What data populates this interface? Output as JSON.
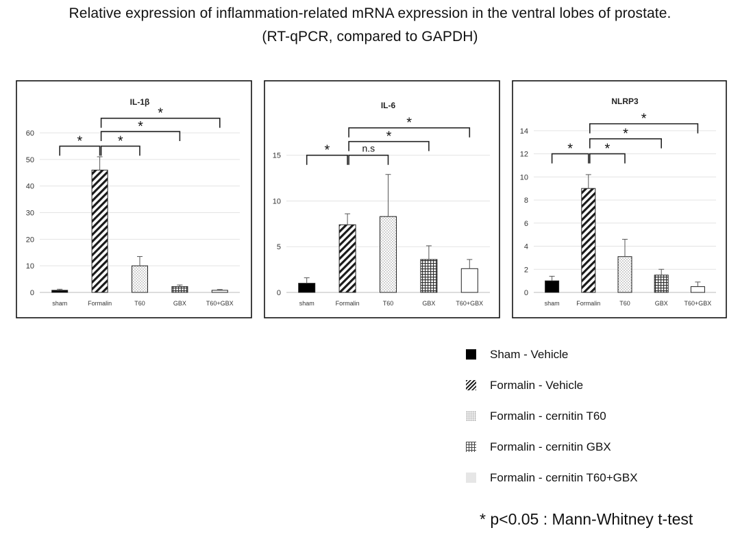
{
  "title_line1": "Relative expression of inflammation-related mRNA expression in the ventral lobes of prostate.",
  "title_line2": "(RT-qPCR, compared to GAPDH)",
  "chart_data": [
    {
      "type": "bar",
      "title": "IL-1β",
      "categories": [
        "sham",
        "Formalin",
        "T60",
        "GBX",
        "T60+GBX"
      ],
      "values": [
        0.8,
        46,
        10,
        2.2,
        0.8
      ],
      "errors": [
        0.4,
        5,
        3.5,
        0.6,
        0.3
      ],
      "ylim": [
        0,
        60
      ],
      "yticks": [
        0,
        10,
        20,
        30,
        40,
        50,
        60
      ],
      "brackets": [
        {
          "from": 0,
          "to": 1,
          "level": 55,
          "label": "*"
        },
        {
          "from": 1,
          "to": 2,
          "level": 55,
          "label": "*"
        },
        {
          "from": 1,
          "to": 3,
          "level": 60.5,
          "label": "*"
        },
        {
          "from": 1,
          "to": 4,
          "level": 65.5,
          "label": "*"
        }
      ]
    },
    {
      "type": "bar",
      "title": "IL-6",
      "categories": [
        "sham",
        "Formalin",
        "T60",
        "GBX",
        "T60+GBX"
      ],
      "values": [
        1,
        7.4,
        8.3,
        3.6,
        2.6
      ],
      "errors": [
        0.6,
        1.2,
        4.6,
        1.5,
        1.0
      ],
      "ylim": [
        0,
        17
      ],
      "yticks": [
        0,
        5,
        10,
        15
      ],
      "brackets": [
        {
          "from": 0,
          "to": 1,
          "level": 15,
          "label": "*"
        },
        {
          "from": 1,
          "to": 2,
          "level": 15,
          "label": "n.s"
        },
        {
          "from": 1,
          "to": 3,
          "level": 16.5,
          "label": "*"
        },
        {
          "from": 1,
          "to": 4,
          "level": 18,
          "label": "*"
        }
      ]
    },
    {
      "type": "bar",
      "title": "NLRP3",
      "categories": [
        "sham",
        "Formalin",
        "T60",
        "GBX",
        "T60+GBX"
      ],
      "values": [
        1,
        9,
        3.1,
        1.5,
        0.5
      ],
      "errors": [
        0.4,
        1.2,
        1.5,
        0.5,
        0.4
      ],
      "ylim": [
        0,
        15
      ],
      "yticks": [
        0,
        2,
        4,
        6,
        8,
        10,
        12,
        14
      ],
      "brackets": [
        {
          "from": 0,
          "to": 1,
          "level": 12,
          "label": "*"
        },
        {
          "from": 1,
          "to": 2,
          "level": 12,
          "label": "*"
        },
        {
          "from": 1,
          "to": 3,
          "level": 13.3,
          "label": "*"
        },
        {
          "from": 1,
          "to": 4,
          "level": 14.6,
          "label": "*"
        }
      ]
    }
  ],
  "legend": [
    {
      "label": "Sham - Vehicle",
      "fill": "solid"
    },
    {
      "label": "Formalin - Vehicle",
      "fill": "hatch"
    },
    {
      "label": "Formalin - cernitin T60",
      "fill": "dots"
    },
    {
      "label": "Formalin - cernitin GBX",
      "fill": "grid"
    },
    {
      "label": "Formalin - cernitin T60+GBX",
      "fill": "light"
    }
  ],
  "footnote": "* p<0.05 : Mann-Whitney t-test"
}
